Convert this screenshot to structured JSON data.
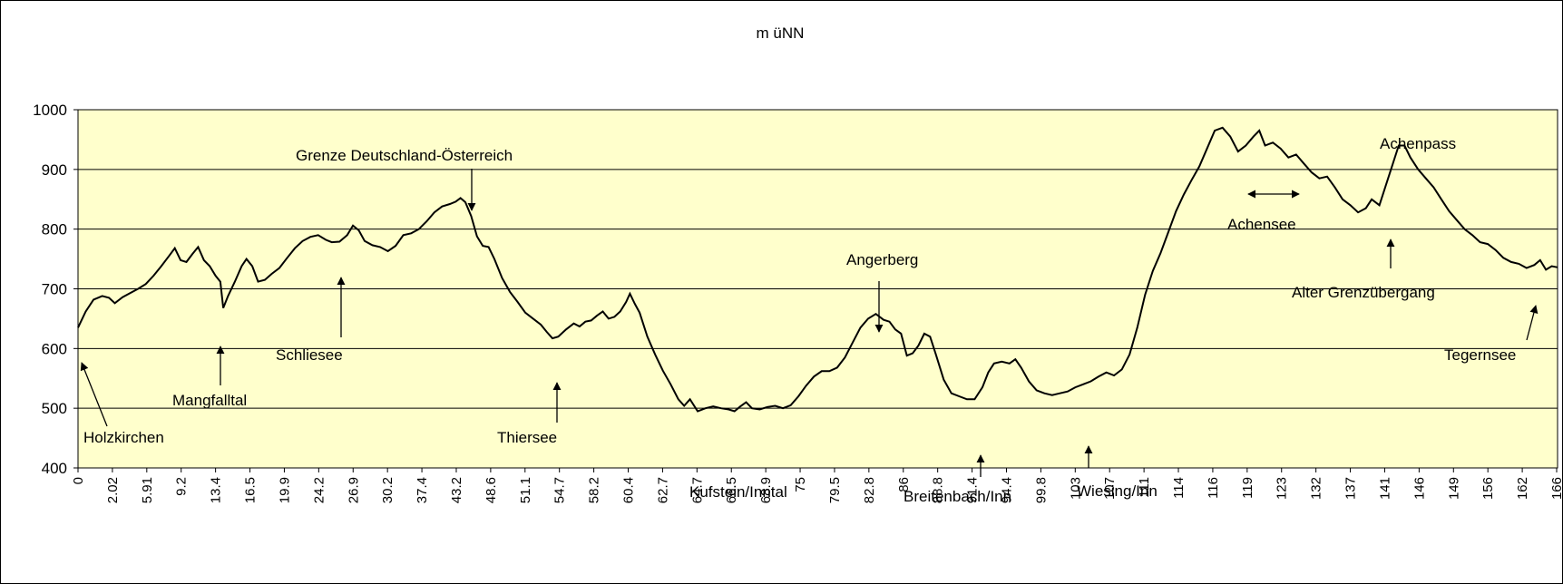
{
  "chart_data": {
    "type": "line",
    "title": "m üNN",
    "xlabel": "",
    "ylabel": "",
    "ylim": [
      400,
      1000
    ],
    "yticks": [
      400,
      500,
      600,
      700,
      800,
      900,
      1000
    ],
    "grid": true,
    "colors": {
      "plot_background": "#ffffcc",
      "line": "#000000",
      "grid": "#000000"
    },
    "x_tick_labels": [
      "0",
      "2.02",
      "5.91",
      "9.2",
      "13.4",
      "16.5",
      "19.9",
      "24.2",
      "26.9",
      "30.2",
      "37.4",
      "43.2",
      "48.6",
      "51.1",
      "54.7",
      "58.2",
      "60.4",
      "62.7",
      "64.7",
      "66.5",
      "68.9",
      "75",
      "79.5",
      "82.8",
      "86",
      "88.8",
      "91.4",
      "94.4",
      "99.8",
      "103",
      "107",
      "111",
      "114",
      "116",
      "119",
      "123",
      "132",
      "137",
      "141",
      "146",
      "149",
      "156",
      "162",
      "166"
    ],
    "series": [
      {
        "points": [
          [
            0,
            635
          ],
          [
            0.8,
            662
          ],
          [
            1.6,
            682
          ],
          [
            2.5,
            688
          ],
          [
            3.2,
            685
          ],
          [
            3.8,
            676
          ],
          [
            4.6,
            686
          ],
          [
            5.4,
            693
          ],
          [
            6.2,
            700
          ],
          [
            7.0,
            708
          ],
          [
            7.8,
            722
          ],
          [
            8.6,
            738
          ],
          [
            9.4,
            755
          ],
          [
            10.0,
            768
          ],
          [
            10.6,
            748
          ],
          [
            11.2,
            745
          ],
          [
            11.8,
            758
          ],
          [
            12.4,
            770
          ],
          [
            13.0,
            748
          ],
          [
            13.6,
            738
          ],
          [
            14.2,
            722
          ],
          [
            14.7,
            712
          ],
          [
            15.0,
            668
          ],
          [
            15.5,
            688
          ],
          [
            16.2,
            712
          ],
          [
            16.9,
            738
          ],
          [
            17.4,
            750
          ],
          [
            18.0,
            738
          ],
          [
            18.6,
            712
          ],
          [
            19.3,
            715
          ],
          [
            20.0,
            725
          ],
          [
            20.8,
            735
          ],
          [
            21.6,
            752
          ],
          [
            22.4,
            768
          ],
          [
            23.2,
            780
          ],
          [
            24.0,
            787
          ],
          [
            24.8,
            790
          ],
          [
            25.6,
            782
          ],
          [
            26.2,
            778
          ],
          [
            27.0,
            779
          ],
          [
            27.8,
            790
          ],
          [
            28.4,
            806
          ],
          [
            29.0,
            798
          ],
          [
            29.6,
            780
          ],
          [
            30.4,
            773
          ],
          [
            31.2,
            770
          ],
          [
            32.0,
            763
          ],
          [
            32.8,
            772
          ],
          [
            33.6,
            790
          ],
          [
            34.4,
            793
          ],
          [
            35.2,
            800
          ],
          [
            36.0,
            813
          ],
          [
            36.8,
            828
          ],
          [
            37.6,
            838
          ],
          [
            38.4,
            842
          ],
          [
            39.0,
            846
          ],
          [
            39.5,
            852
          ],
          [
            40.0,
            845
          ],
          [
            40.6,
            822
          ],
          [
            41.2,
            788
          ],
          [
            41.8,
            772
          ],
          [
            42.4,
            770
          ],
          [
            43.0,
            750
          ],
          [
            43.8,
            718
          ],
          [
            44.6,
            695
          ],
          [
            45.4,
            678
          ],
          [
            46.2,
            660
          ],
          [
            47.0,
            650
          ],
          [
            47.8,
            640
          ],
          [
            48.4,
            628
          ],
          [
            49.0,
            617
          ],
          [
            49.6,
            620
          ],
          [
            50.4,
            632
          ],
          [
            51.2,
            642
          ],
          [
            51.8,
            637
          ],
          [
            52.4,
            645
          ],
          [
            53.0,
            647
          ],
          [
            53.6,
            655
          ],
          [
            54.2,
            662
          ],
          [
            54.8,
            650
          ],
          [
            55.4,
            653
          ],
          [
            56.0,
            662
          ],
          [
            56.6,
            678
          ],
          [
            57.0,
            692
          ],
          [
            57.5,
            675
          ],
          [
            58.0,
            660
          ],
          [
            58.8,
            620
          ],
          [
            59.6,
            590
          ],
          [
            60.4,
            563
          ],
          [
            61.2,
            540
          ],
          [
            62.0,
            515
          ],
          [
            62.6,
            504
          ],
          [
            63.2,
            515
          ],
          [
            64.0,
            495
          ],
          [
            64.8,
            500
          ],
          [
            65.6,
            503
          ],
          [
            66.4,
            500
          ],
          [
            67.2,
            498
          ],
          [
            67.8,
            495
          ],
          [
            68.4,
            503
          ],
          [
            69.0,
            510
          ],
          [
            69.6,
            500
          ],
          [
            70.4,
            498
          ],
          [
            71.2,
            502
          ],
          [
            72.0,
            504
          ],
          [
            72.8,
            500
          ],
          [
            73.6,
            505
          ],
          [
            74.4,
            520
          ],
          [
            75.2,
            538
          ],
          [
            76.0,
            553
          ],
          [
            76.8,
            562
          ],
          [
            77.6,
            562
          ],
          [
            78.4,
            568
          ],
          [
            79.2,
            585
          ],
          [
            80.0,
            610
          ],
          [
            80.8,
            635
          ],
          [
            81.6,
            650
          ],
          [
            82.4,
            658
          ],
          [
            83.2,
            648
          ],
          [
            83.8,
            645
          ],
          [
            84.4,
            632
          ],
          [
            85.0,
            625
          ],
          [
            85.6,
            588
          ],
          [
            86.2,
            592
          ],
          [
            86.8,
            605
          ],
          [
            87.4,
            625
          ],
          [
            88.0,
            620
          ],
          [
            88.6,
            590
          ],
          [
            89.4,
            548
          ],
          [
            90.2,
            525
          ],
          [
            91.0,
            520
          ],
          [
            91.8,
            515
          ],
          [
            92.6,
            515
          ],
          [
            93.4,
            535
          ],
          [
            94.0,
            560
          ],
          [
            94.6,
            575
          ],
          [
            95.4,
            578
          ],
          [
            96.2,
            575
          ],
          [
            96.8,
            582
          ],
          [
            97.4,
            568
          ],
          [
            98.2,
            545
          ],
          [
            99.0,
            530
          ],
          [
            99.8,
            525
          ],
          [
            100.6,
            522
          ],
          [
            101.4,
            525
          ],
          [
            102.2,
            528
          ],
          [
            103.0,
            535
          ],
          [
            103.8,
            540
          ],
          [
            104.6,
            545
          ],
          [
            105.4,
            553
          ],
          [
            106.2,
            560
          ],
          [
            107.0,
            555
          ],
          [
            107.8,
            565
          ],
          [
            108.6,
            590
          ],
          [
            109.4,
            635
          ],
          [
            110.2,
            690
          ],
          [
            111.0,
            730
          ],
          [
            111.8,
            760
          ],
          [
            112.6,
            795
          ],
          [
            113.4,
            830
          ],
          [
            114.2,
            858
          ],
          [
            115.0,
            882
          ],
          [
            115.8,
            905
          ],
          [
            116.6,
            935
          ],
          [
            117.4,
            965
          ],
          [
            118.2,
            970
          ],
          [
            119.0,
            955
          ],
          [
            119.8,
            930
          ],
          [
            120.6,
            940
          ],
          [
            121.4,
            955
          ],
          [
            122.0,
            965
          ],
          [
            122.6,
            940
          ],
          [
            123.4,
            945
          ],
          [
            124.2,
            935
          ],
          [
            125.0,
            920
          ],
          [
            125.8,
            925
          ],
          [
            126.6,
            910
          ],
          [
            127.4,
            895
          ],
          [
            128.2,
            885
          ],
          [
            129.0,
            888
          ],
          [
            129.8,
            870
          ],
          [
            130.6,
            850
          ],
          [
            131.4,
            840
          ],
          [
            132.2,
            828
          ],
          [
            133.0,
            835
          ],
          [
            133.6,
            850
          ],
          [
            134.4,
            840
          ],
          [
            135.0,
            870
          ],
          [
            135.8,
            910
          ],
          [
            136.4,
            940
          ],
          [
            137.0,
            940
          ],
          [
            137.6,
            920
          ],
          [
            138.4,
            900
          ],
          [
            139.2,
            885
          ],
          [
            140.0,
            870
          ],
          [
            140.8,
            850
          ],
          [
            141.6,
            830
          ],
          [
            142.4,
            815
          ],
          [
            143.2,
            800
          ],
          [
            144.0,
            790
          ],
          [
            144.8,
            778
          ],
          [
            145.6,
            775
          ],
          [
            146.4,
            765
          ],
          [
            147.2,
            752
          ],
          [
            148.0,
            745
          ],
          [
            148.8,
            742
          ],
          [
            149.6,
            735
          ],
          [
            150.4,
            740
          ],
          [
            151.0,
            748
          ],
          [
            151.6,
            732
          ],
          [
            152.2,
            738
          ],
          [
            152.8,
            736
          ]
        ]
      }
    ],
    "annotations": [
      {
        "text": "Holzkirchen",
        "arrow": "up"
      },
      {
        "text": "Mangfalltal",
        "arrow": "up"
      },
      {
        "text": "Schliesee",
        "arrow": "up"
      },
      {
        "text": "Grenze Deutschland-Österreich",
        "arrow": "down"
      },
      {
        "text": "Thiersee",
        "arrow": "up"
      },
      {
        "text": "Kufstein/Inntal",
        "arrow": "none"
      },
      {
        "text": "Angerberg",
        "arrow": "down"
      },
      {
        "text": "Breitenbach/Inn",
        "arrow": "up"
      },
      {
        "text": "Wiesing/Inn",
        "arrow": "up"
      },
      {
        "text": "Achensee",
        "arrow": "both"
      },
      {
        "text": "Achenpass",
        "arrow": "none"
      },
      {
        "text": "Alter Grenzübergang",
        "arrow": "up"
      },
      {
        "text": "Tegernsee",
        "arrow": "up"
      }
    ]
  }
}
